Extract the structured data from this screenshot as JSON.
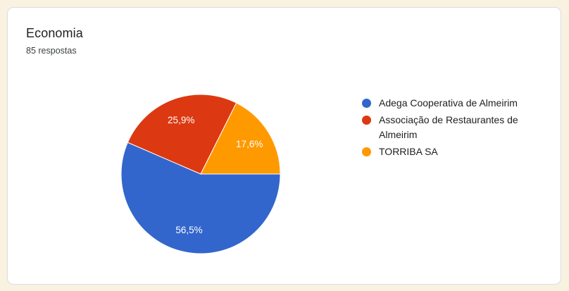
{
  "page": {
    "background_color": "#f9f2e1",
    "card_background": "#ffffff",
    "card_border_color": "#dadce0"
  },
  "header": {
    "title": "Economia",
    "subtitle": "85 respostas"
  },
  "chart_data": {
    "type": "pie",
    "title": "Economia",
    "subtitle": "85 respostas",
    "total_responses": 85,
    "categories": [
      "Adega Cooperativa de Almeirim",
      "Associação de Restaurantes de Almeirim",
      "TORRIBA SA"
    ],
    "values_percent": [
      56.5,
      25.9,
      17.6
    ],
    "slice_labels": [
      "56,5%",
      "25,9%",
      "17,6%"
    ],
    "colors": [
      "#3366cc",
      "#dc3912",
      "#ff9900"
    ],
    "slice_label_color": "#ffffff",
    "slice_border_color": "#ffffff",
    "legend_position": "right",
    "start_angle_deg": 90
  }
}
